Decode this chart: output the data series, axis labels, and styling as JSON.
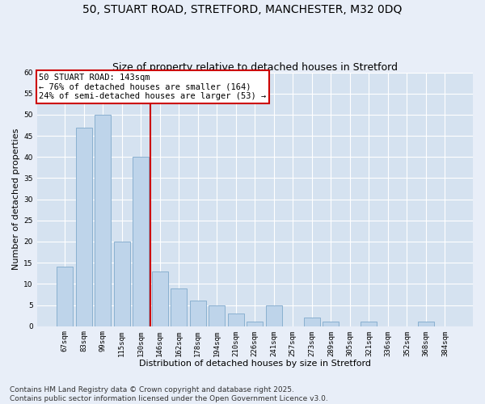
{
  "title_line1": "50, STUART ROAD, STRETFORD, MANCHESTER, M32 0DQ",
  "title_line2": "Size of property relative to detached houses in Stretford",
  "xlabel": "Distribution of detached houses by size in Stretford",
  "ylabel": "Number of detached properties",
  "categories": [
    "67sqm",
    "83sqm",
    "99sqm",
    "115sqm",
    "130sqm",
    "146sqm",
    "162sqm",
    "178sqm",
    "194sqm",
    "210sqm",
    "226sqm",
    "241sqm",
    "257sqm",
    "273sqm",
    "289sqm",
    "305sqm",
    "321sqm",
    "336sqm",
    "352sqm",
    "368sqm",
    "384sqm"
  ],
  "values": [
    14,
    47,
    50,
    20,
    40,
    13,
    9,
    6,
    5,
    3,
    1,
    5,
    0,
    2,
    1,
    0,
    1,
    0,
    0,
    1,
    0
  ],
  "bar_color": "#bed4ea",
  "bar_edge_color": "#8ab0d0",
  "vline_color": "#cc0000",
  "vline_x": 4.5,
  "ylim": [
    0,
    60
  ],
  "yticks": [
    0,
    5,
    10,
    15,
    20,
    25,
    30,
    35,
    40,
    45,
    50,
    55,
    60
  ],
  "annotation_text": "50 STUART ROAD: 143sqm\n← 76% of detached houses are smaller (164)\n24% of semi-detached houses are larger (53) →",
  "annotation_box_facecolor": "#ffffff",
  "annotation_box_edgecolor": "#cc0000",
  "footer": "Contains HM Land Registry data © Crown copyright and database right 2025.\nContains public sector information licensed under the Open Government Licence v3.0.",
  "fig_facecolor": "#e8eef8",
  "axes_facecolor": "#d5e2f0",
  "grid_color": "#ffffff",
  "title_fontsize": 10,
  "subtitle_fontsize": 9,
  "axis_label_fontsize": 8,
  "tick_fontsize": 6.5,
  "annotation_fontsize": 7.5,
  "footer_fontsize": 6.5
}
